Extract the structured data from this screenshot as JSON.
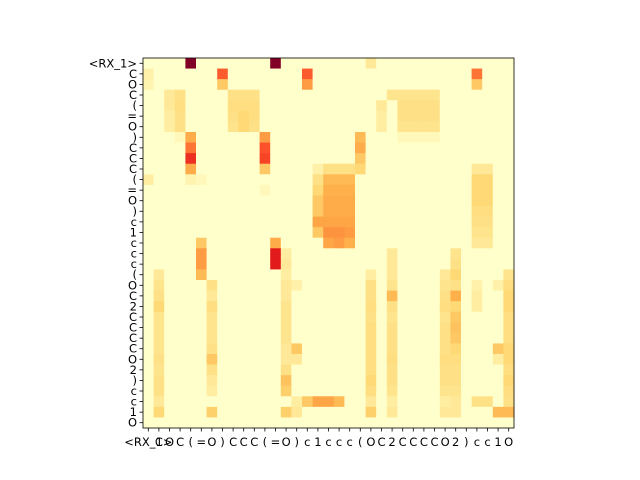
{
  "chart_data": {
    "type": "heatmap",
    "title": "",
    "xlabel": "",
    "ylabel": "",
    "colormap": "YlOrRd",
    "value_range": [
      0,
      1
    ],
    "x_tokens": [
      "<RX_1>",
      "C",
      "O",
      "C",
      "(",
      "=",
      "O",
      ")",
      "C",
      "C",
      "C",
      "(",
      "=",
      "O",
      ")",
      "c",
      "1",
      "c",
      "c",
      "c",
      "(",
      "O",
      "C",
      "2",
      "C",
      "C",
      "C",
      "C",
      "O",
      "2",
      ")",
      "c",
      "c",
      "1",
      "O"
    ],
    "y_tokens": [
      "<RX_1>",
      "C",
      "O",
      "C",
      "(",
      "=",
      "O",
      ")",
      "C",
      "C",
      "C",
      "(",
      "=",
      "O",
      ")",
      "c",
      "1",
      "c",
      "c",
      "c",
      "(",
      "O",
      "C",
      "2",
      "C",
      "C",
      "C",
      "C",
      "O",
      "2",
      ")",
      "c",
      "c",
      "1",
      "O"
    ],
    "x_tick_labels": [
      "<RX_1>",
      "C",
      "O",
      "C",
      "(",
      "=",
      "O",
      ")",
      "C",
      "C",
      "C",
      "(",
      "=",
      "O",
      ")",
      "c",
      "1",
      "c",
      "c",
      "c",
      "(",
      "O",
      "C",
      "2",
      "C",
      "C",
      "C",
      "C",
      "O",
      "2",
      ")",
      "c",
      "c",
      "1",
      "O"
    ],
    "y_tick_labels": [
      "<RX_1>",
      "C",
      "O",
      "C",
      "(",
      "=",
      "O",
      ")",
      "C",
      "C",
      "C",
      "(",
      "=",
      "O",
      ")",
      "c",
      "1",
      "c",
      "c",
      "c",
      "(",
      "O",
      "C",
      "2",
      "C",
      "C",
      "C",
      "C",
      "O",
      "2",
      ")",
      "c",
      "c",
      "1",
      "O"
    ],
    "cells": [
      {
        "r": 0,
        "c": 4,
        "v": 1.0
      },
      {
        "r": 0,
        "c": 12,
        "v": 1.0
      },
      {
        "r": 0,
        "c": 21,
        "v": 0.15
      },
      {
        "r": 1,
        "c": 0,
        "v": 0.1
      },
      {
        "r": 1,
        "c": 7,
        "v": 0.6
      },
      {
        "r": 1,
        "c": 15,
        "v": 0.6
      },
      {
        "r": 1,
        "c": 31,
        "v": 0.55
      },
      {
        "r": 2,
        "c": 0,
        "v": 0.08
      },
      {
        "r": 2,
        "c": 7,
        "v": 0.3
      },
      {
        "r": 2,
        "c": 15,
        "v": 0.45
      },
      {
        "r": 2,
        "c": 31,
        "v": 0.3
      },
      {
        "r": 3,
        "c": 2,
        "v": 0.15
      },
      {
        "r": 3,
        "c": 3,
        "v": 0.2
      },
      {
        "r": 3,
        "c": 8,
        "v": 0.2
      },
      {
        "r": 3,
        "c": 9,
        "v": 0.2
      },
      {
        "r": 3,
        "c": 10,
        "v": 0.2
      },
      {
        "r": 3,
        "c": 23,
        "v": 0.18
      },
      {
        "r": 3,
        "c": 24,
        "v": 0.18
      },
      {
        "r": 3,
        "c": 25,
        "v": 0.18
      },
      {
        "r": 3,
        "c": 26,
        "v": 0.18
      },
      {
        "r": 3,
        "c": 27,
        "v": 0.18
      },
      {
        "r": 4,
        "c": 2,
        "v": 0.15
      },
      {
        "r": 4,
        "c": 3,
        "v": 0.22
      },
      {
        "r": 4,
        "c": 8,
        "v": 0.22
      },
      {
        "r": 4,
        "c": 9,
        "v": 0.22
      },
      {
        "r": 4,
        "c": 10,
        "v": 0.22
      },
      {
        "r": 4,
        "c": 22,
        "v": 0.15
      },
      {
        "r": 4,
        "c": 24,
        "v": 0.2
      },
      {
        "r": 4,
        "c": 25,
        "v": 0.2
      },
      {
        "r": 4,
        "c": 26,
        "v": 0.2
      },
      {
        "r": 4,
        "c": 27,
        "v": 0.2
      },
      {
        "r": 5,
        "c": 2,
        "v": 0.12
      },
      {
        "r": 5,
        "c": 3,
        "v": 0.2
      },
      {
        "r": 5,
        "c": 8,
        "v": 0.2
      },
      {
        "r": 5,
        "c": 9,
        "v": 0.25
      },
      {
        "r": 5,
        "c": 10,
        "v": 0.22
      },
      {
        "r": 5,
        "c": 22,
        "v": 0.12
      },
      {
        "r": 5,
        "c": 24,
        "v": 0.2
      },
      {
        "r": 5,
        "c": 25,
        "v": 0.2
      },
      {
        "r": 5,
        "c": 26,
        "v": 0.2
      },
      {
        "r": 5,
        "c": 27,
        "v": 0.2
      },
      {
        "r": 6,
        "c": 2,
        "v": 0.12
      },
      {
        "r": 6,
        "c": 3,
        "v": 0.2
      },
      {
        "r": 6,
        "c": 8,
        "v": 0.18
      },
      {
        "r": 6,
        "c": 9,
        "v": 0.25
      },
      {
        "r": 6,
        "c": 10,
        "v": 0.2
      },
      {
        "r": 6,
        "c": 22,
        "v": 0.12
      },
      {
        "r": 6,
        "c": 24,
        "v": 0.18
      },
      {
        "r": 6,
        "c": 25,
        "v": 0.18
      },
      {
        "r": 6,
        "c": 26,
        "v": 0.18
      },
      {
        "r": 6,
        "c": 27,
        "v": 0.18
      },
      {
        "r": 7,
        "c": 3,
        "v": 0.05
      },
      {
        "r": 7,
        "c": 4,
        "v": 0.4
      },
      {
        "r": 7,
        "c": 11,
        "v": 0.45
      },
      {
        "r": 7,
        "c": 20,
        "v": 0.35
      },
      {
        "r": 7,
        "c": 24,
        "v": 0.05
      },
      {
        "r": 7,
        "c": 25,
        "v": 0.05
      },
      {
        "r": 7,
        "c": 26,
        "v": 0.05
      },
      {
        "r": 7,
        "c": 27,
        "v": 0.05
      },
      {
        "r": 8,
        "c": 4,
        "v": 0.55
      },
      {
        "r": 8,
        "c": 11,
        "v": 0.62
      },
      {
        "r": 8,
        "c": 20,
        "v": 0.4
      },
      {
        "r": 9,
        "c": 4,
        "v": 0.7
      },
      {
        "r": 9,
        "c": 11,
        "v": 0.65
      },
      {
        "r": 9,
        "c": 20,
        "v": 0.3
      },
      {
        "r": 10,
        "c": 4,
        "v": 0.4
      },
      {
        "r": 10,
        "c": 11,
        "v": 0.3
      },
      {
        "r": 10,
        "c": 16,
        "v": 0.1
      },
      {
        "r": 10,
        "c": 17,
        "v": 0.2
      },
      {
        "r": 10,
        "c": 18,
        "v": 0.2
      },
      {
        "r": 10,
        "c": 19,
        "v": 0.2
      },
      {
        "r": 10,
        "c": 20,
        "v": 0.25
      },
      {
        "r": 10,
        "c": 31,
        "v": 0.15
      },
      {
        "r": 10,
        "c": 32,
        "v": 0.15
      },
      {
        "r": 11,
        "c": 0,
        "v": 0.12
      },
      {
        "r": 11,
        "c": 4,
        "v": 0.08
      },
      {
        "r": 11,
        "c": 5,
        "v": 0.05
      },
      {
        "r": 11,
        "c": 16,
        "v": 0.2
      },
      {
        "r": 11,
        "c": 17,
        "v": 0.35
      },
      {
        "r": 11,
        "c": 18,
        "v": 0.35
      },
      {
        "r": 11,
        "c": 19,
        "v": 0.35
      },
      {
        "r": 11,
        "c": 31,
        "v": 0.25
      },
      {
        "r": 11,
        "c": 32,
        "v": 0.25
      },
      {
        "r": 12,
        "c": 11,
        "v": 0.05
      },
      {
        "r": 12,
        "c": 16,
        "v": 0.25
      },
      {
        "r": 12,
        "c": 17,
        "v": 0.38
      },
      {
        "r": 12,
        "c": 18,
        "v": 0.38
      },
      {
        "r": 12,
        "c": 19,
        "v": 0.38
      },
      {
        "r": 12,
        "c": 31,
        "v": 0.25
      },
      {
        "r": 12,
        "c": 32,
        "v": 0.25
      },
      {
        "r": 13,
        "c": 16,
        "v": 0.3
      },
      {
        "r": 13,
        "c": 17,
        "v": 0.4
      },
      {
        "r": 13,
        "c": 18,
        "v": 0.4
      },
      {
        "r": 13,
        "c": 19,
        "v": 0.4
      },
      {
        "r": 13,
        "c": 31,
        "v": 0.25
      },
      {
        "r": 13,
        "c": 32,
        "v": 0.25
      },
      {
        "r": 14,
        "c": 16,
        "v": 0.3
      },
      {
        "r": 14,
        "c": 17,
        "v": 0.4
      },
      {
        "r": 14,
        "c": 18,
        "v": 0.4
      },
      {
        "r": 14,
        "c": 19,
        "v": 0.4
      },
      {
        "r": 14,
        "c": 31,
        "v": 0.22
      },
      {
        "r": 14,
        "c": 32,
        "v": 0.22
      },
      {
        "r": 15,
        "c": 16,
        "v": 0.42
      },
      {
        "r": 15,
        "c": 17,
        "v": 0.42
      },
      {
        "r": 15,
        "c": 18,
        "v": 0.42
      },
      {
        "r": 15,
        "c": 19,
        "v": 0.42
      },
      {
        "r": 15,
        "c": 31,
        "v": 0.2
      },
      {
        "r": 15,
        "c": 32,
        "v": 0.2
      },
      {
        "r": 16,
        "c": 16,
        "v": 0.3
      },
      {
        "r": 16,
        "c": 17,
        "v": 0.48
      },
      {
        "r": 16,
        "c": 18,
        "v": 0.48
      },
      {
        "r": 16,
        "c": 19,
        "v": 0.45
      },
      {
        "r": 16,
        "c": 31,
        "v": 0.18
      },
      {
        "r": 16,
        "c": 32,
        "v": 0.18
      },
      {
        "r": 17,
        "c": 5,
        "v": 0.3
      },
      {
        "r": 17,
        "c": 12,
        "v": 0.4
      },
      {
        "r": 17,
        "c": 17,
        "v": 0.42
      },
      {
        "r": 17,
        "c": 18,
        "v": 0.45
      },
      {
        "r": 17,
        "c": 19,
        "v": 0.38
      },
      {
        "r": 17,
        "c": 31,
        "v": 0.15
      },
      {
        "r": 17,
        "c": 32,
        "v": 0.15
      },
      {
        "r": 18,
        "c": 5,
        "v": 0.45
      },
      {
        "r": 18,
        "c": 12,
        "v": 0.75
      },
      {
        "r": 18,
        "c": 13,
        "v": 0.12
      },
      {
        "r": 18,
        "c": 23,
        "v": 0.15
      },
      {
        "r": 18,
        "c": 29,
        "v": 0.18
      },
      {
        "r": 19,
        "c": 5,
        "v": 0.45
      },
      {
        "r": 19,
        "c": 12,
        "v": 0.75
      },
      {
        "r": 19,
        "c": 13,
        "v": 0.15
      },
      {
        "r": 19,
        "c": 23,
        "v": 0.15
      },
      {
        "r": 19,
        "c": 29,
        "v": 0.2
      },
      {
        "r": 20,
        "c": 1,
        "v": 0.15
      },
      {
        "r": 20,
        "c": 5,
        "v": 0.35
      },
      {
        "r": 20,
        "c": 13,
        "v": 0.12
      },
      {
        "r": 20,
        "c": 21,
        "v": 0.12
      },
      {
        "r": 20,
        "c": 23,
        "v": 0.15
      },
      {
        "r": 20,
        "c": 28,
        "v": 0.15
      },
      {
        "r": 20,
        "c": 29,
        "v": 0.25
      },
      {
        "r": 20,
        "c": 34,
        "v": 0.18
      },
      {
        "r": 21,
        "c": 1,
        "v": 0.18
      },
      {
        "r": 21,
        "c": 6,
        "v": 0.2
      },
      {
        "r": 21,
        "c": 13,
        "v": 0.15
      },
      {
        "r": 21,
        "c": 14,
        "v": 0.1
      },
      {
        "r": 21,
        "c": 21,
        "v": 0.2
      },
      {
        "r": 21,
        "c": 23,
        "v": 0.18
      },
      {
        "r": 21,
        "c": 28,
        "v": 0.18
      },
      {
        "r": 21,
        "c": 29,
        "v": 0.2
      },
      {
        "r": 21,
        "c": 31,
        "v": 0.1
      },
      {
        "r": 21,
        "c": 33,
        "v": 0.1
      },
      {
        "r": 21,
        "c": 34,
        "v": 0.22
      },
      {
        "r": 22,
        "c": 1,
        "v": 0.2
      },
      {
        "r": 22,
        "c": 6,
        "v": 0.15
      },
      {
        "r": 22,
        "c": 13,
        "v": 0.15
      },
      {
        "r": 22,
        "c": 21,
        "v": 0.2
      },
      {
        "r": 22,
        "c": 23,
        "v": 0.35
      },
      {
        "r": 22,
        "c": 28,
        "v": 0.2
      },
      {
        "r": 22,
        "c": 29,
        "v": 0.38
      },
      {
        "r": 22,
        "c": 31,
        "v": 0.12
      },
      {
        "r": 22,
        "c": 34,
        "v": 0.25
      },
      {
        "r": 23,
        "c": 1,
        "v": 0.25
      },
      {
        "r": 23,
        "c": 6,
        "v": 0.22
      },
      {
        "r": 23,
        "c": 13,
        "v": 0.18
      },
      {
        "r": 23,
        "c": 21,
        "v": 0.22
      },
      {
        "r": 23,
        "c": 23,
        "v": 0.2
      },
      {
        "r": 23,
        "c": 28,
        "v": 0.22
      },
      {
        "r": 23,
        "c": 29,
        "v": 0.25
      },
      {
        "r": 23,
        "c": 31,
        "v": 0.12
      },
      {
        "r": 23,
        "c": 34,
        "v": 0.25
      },
      {
        "r": 24,
        "c": 1,
        "v": 0.18
      },
      {
        "r": 24,
        "c": 6,
        "v": 0.18
      },
      {
        "r": 24,
        "c": 13,
        "v": 0.18
      },
      {
        "r": 24,
        "c": 21,
        "v": 0.2
      },
      {
        "r": 24,
        "c": 23,
        "v": 0.18
      },
      {
        "r": 24,
        "c": 28,
        "v": 0.18
      },
      {
        "r": 24,
        "c": 29,
        "v": 0.3
      },
      {
        "r": 24,
        "c": 34,
        "v": 0.22
      },
      {
        "r": 25,
        "c": 1,
        "v": 0.18
      },
      {
        "r": 25,
        "c": 6,
        "v": 0.18
      },
      {
        "r": 25,
        "c": 13,
        "v": 0.18
      },
      {
        "r": 25,
        "c": 21,
        "v": 0.22
      },
      {
        "r": 25,
        "c": 23,
        "v": 0.2
      },
      {
        "r": 25,
        "c": 28,
        "v": 0.2
      },
      {
        "r": 25,
        "c": 29,
        "v": 0.32
      },
      {
        "r": 25,
        "c": 34,
        "v": 0.22
      },
      {
        "r": 26,
        "c": 1,
        "v": 0.18
      },
      {
        "r": 26,
        "c": 6,
        "v": 0.18
      },
      {
        "r": 26,
        "c": 13,
        "v": 0.18
      },
      {
        "r": 26,
        "c": 21,
        "v": 0.22
      },
      {
        "r": 26,
        "c": 23,
        "v": 0.2
      },
      {
        "r": 26,
        "c": 28,
        "v": 0.2
      },
      {
        "r": 26,
        "c": 29,
        "v": 0.3
      },
      {
        "r": 26,
        "c": 34,
        "v": 0.22
      },
      {
        "r": 27,
        "c": 1,
        "v": 0.18
      },
      {
        "r": 27,
        "c": 6,
        "v": 0.2
      },
      {
        "r": 27,
        "c": 13,
        "v": 0.15
      },
      {
        "r": 27,
        "c": 14,
        "v": 0.3
      },
      {
        "r": 27,
        "c": 21,
        "v": 0.22
      },
      {
        "r": 27,
        "c": 23,
        "v": 0.2
      },
      {
        "r": 27,
        "c": 28,
        "v": 0.2
      },
      {
        "r": 27,
        "c": 29,
        "v": 0.25
      },
      {
        "r": 27,
        "c": 33,
        "v": 0.3
      },
      {
        "r": 27,
        "c": 34,
        "v": 0.25
      },
      {
        "r": 28,
        "c": 1,
        "v": 0.2
      },
      {
        "r": 28,
        "c": 6,
        "v": 0.3
      },
      {
        "r": 28,
        "c": 13,
        "v": 0.15
      },
      {
        "r": 28,
        "c": 14,
        "v": 0.15
      },
      {
        "r": 28,
        "c": 21,
        "v": 0.22
      },
      {
        "r": 28,
        "c": 23,
        "v": 0.22
      },
      {
        "r": 28,
        "c": 28,
        "v": 0.22
      },
      {
        "r": 28,
        "c": 29,
        "v": 0.22
      },
      {
        "r": 28,
        "c": 33,
        "v": 0.12
      },
      {
        "r": 28,
        "c": 34,
        "v": 0.25
      },
      {
        "r": 29,
        "c": 1,
        "v": 0.18
      },
      {
        "r": 29,
        "c": 6,
        "v": 0.2
      },
      {
        "r": 29,
        "c": 13,
        "v": 0.2
      },
      {
        "r": 29,
        "c": 21,
        "v": 0.22
      },
      {
        "r": 29,
        "c": 23,
        "v": 0.2
      },
      {
        "r": 29,
        "c": 28,
        "v": 0.2
      },
      {
        "r": 29,
        "c": 29,
        "v": 0.2
      },
      {
        "r": 29,
        "c": 34,
        "v": 0.22
      },
      {
        "r": 30,
        "c": 1,
        "v": 0.2
      },
      {
        "r": 30,
        "c": 6,
        "v": 0.15
      },
      {
        "r": 30,
        "c": 13,
        "v": 0.32
      },
      {
        "r": 30,
        "c": 21,
        "v": 0.25
      },
      {
        "r": 30,
        "c": 23,
        "v": 0.2
      },
      {
        "r": 30,
        "c": 28,
        "v": 0.2
      },
      {
        "r": 30,
        "c": 29,
        "v": 0.2
      },
      {
        "r": 30,
        "c": 34,
        "v": 0.25
      },
      {
        "r": 31,
        "c": 1,
        "v": 0.2
      },
      {
        "r": 31,
        "c": 6,
        "v": 0.12
      },
      {
        "r": 31,
        "c": 13,
        "v": 0.28
      },
      {
        "r": 31,
        "c": 21,
        "v": 0.22
      },
      {
        "r": 31,
        "c": 23,
        "v": 0.18
      },
      {
        "r": 31,
        "c": 28,
        "v": 0.18
      },
      {
        "r": 31,
        "c": 29,
        "v": 0.18
      },
      {
        "r": 31,
        "c": 34,
        "v": 0.22
      },
      {
        "r": 32,
        "c": 1,
        "v": 0.15
      },
      {
        "r": 32,
        "c": 14,
        "v": 0.12
      },
      {
        "r": 32,
        "c": 15,
        "v": 0.3
      },
      {
        "r": 32,
        "c": 16,
        "v": 0.42
      },
      {
        "r": 32,
        "c": 17,
        "v": 0.42
      },
      {
        "r": 32,
        "c": 18,
        "v": 0.35
      },
      {
        "r": 32,
        "c": 21,
        "v": 0.15
      },
      {
        "r": 32,
        "c": 23,
        "v": 0.12
      },
      {
        "r": 32,
        "c": 28,
        "v": 0.12
      },
      {
        "r": 32,
        "c": 29,
        "v": 0.15
      },
      {
        "r": 32,
        "c": 31,
        "v": 0.2
      },
      {
        "r": 32,
        "c": 32,
        "v": 0.2
      },
      {
        "r": 32,
        "c": 34,
        "v": 0.2
      },
      {
        "r": 33,
        "c": 1,
        "v": 0.25
      },
      {
        "r": 33,
        "c": 6,
        "v": 0.28
      },
      {
        "r": 33,
        "c": 13,
        "v": 0.28
      },
      {
        "r": 33,
        "c": 14,
        "v": 0.15
      },
      {
        "r": 33,
        "c": 21,
        "v": 0.28
      },
      {
        "r": 33,
        "c": 23,
        "v": 0.15
      },
      {
        "r": 33,
        "c": 28,
        "v": 0.15
      },
      {
        "r": 33,
        "c": 29,
        "v": 0.15
      },
      {
        "r": 33,
        "c": 33,
        "v": 0.35
      },
      {
        "r": 33,
        "c": 34,
        "v": 0.35
      }
    ]
  }
}
